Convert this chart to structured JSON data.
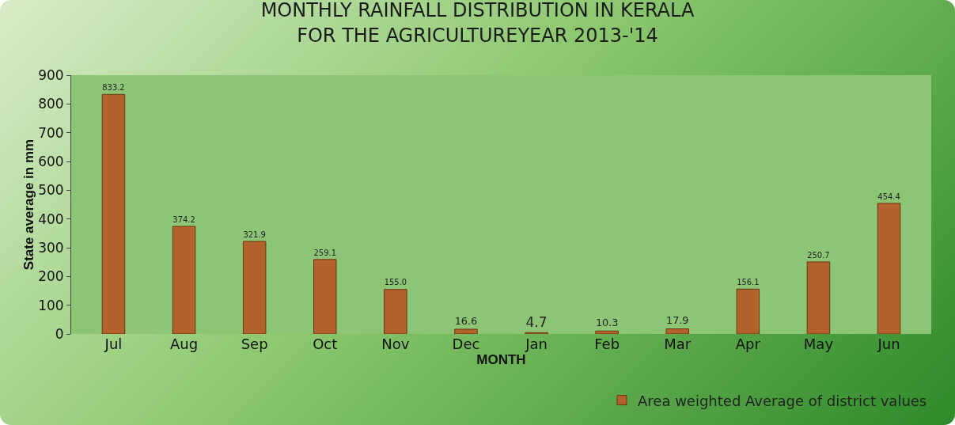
{
  "chart_data": {
    "type": "bar",
    "title": "MONTHLY RAINFALL DISTRIBUTION IN KERALA\nFOR THE AGRICULTUREYEAR 2013-'14",
    "xlabel": "MONTH",
    "ylabel": "State average in mm",
    "categories": [
      "Jul",
      "Aug",
      "Sep",
      "Oct",
      "Nov",
      "Dec",
      "Jan",
      "Feb",
      "Mar",
      "Apr",
      "May",
      "Jun"
    ],
    "series": [
      {
        "name": "Area weighted Average of district values",
        "color": "#b3622c",
        "values": [
          833.2,
          374.2,
          321.9,
          259.1,
          155.0,
          16.6,
          4.7,
          10.3,
          17.9,
          156.1,
          250.7,
          454.4
        ],
        "value_labels": [
          "833.2",
          "374.2",
          "321.9",
          "259.1",
          "155.0",
          "16.6",
          "4.7",
          "10.3",
          "17.9",
          "156.1",
          "250.7",
          "454.4"
        ]
      }
    ],
    "ylim": [
      0,
      900
    ],
    "yticks": [
      0,
      100,
      200,
      300,
      400,
      500,
      600,
      700,
      800,
      900
    ],
    "legend": "bottom right"
  }
}
